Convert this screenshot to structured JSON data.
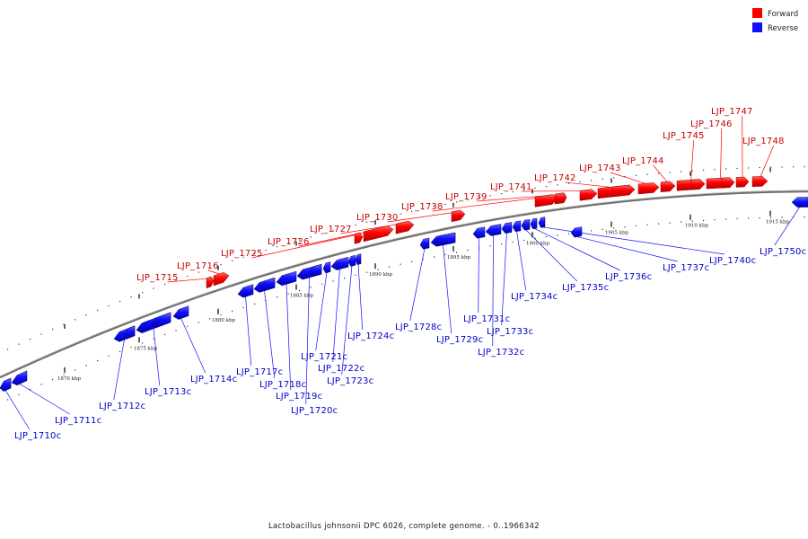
{
  "legend": {
    "forward_label": "Forward",
    "reverse_label": "Reverse",
    "forward_color": "#ff0000",
    "reverse_color": "#1010ff"
  },
  "caption": "Lactobacillus johnsonii DPC 6026, complete genome. - 0..1966342",
  "ticks": [
    {
      "label": "1870 kbp"
    },
    {
      "label": "1875 kbp"
    },
    {
      "label": "1880 kbp"
    },
    {
      "label": "1885 kbp"
    },
    {
      "label": "1890 kbp"
    },
    {
      "label": "1895 kbp"
    },
    {
      "label": "1900 kbp"
    },
    {
      "label": "1905 kbp"
    },
    {
      "label": "1910 kbp"
    },
    {
      "label": "1915 kbp"
    }
  ],
  "genes": {
    "forward": [
      {
        "label": "LJP_1715"
      },
      {
        "label": "LJP_1716"
      },
      {
        "label": "LJP_1725"
      },
      {
        "label": "LJP_1726"
      },
      {
        "label": "LJP_1727"
      },
      {
        "label": "LJP_1730"
      },
      {
        "label": "LJP_1738"
      },
      {
        "label": "LJP_1739"
      },
      {
        "label": "LJP_1741"
      },
      {
        "label": "LJP_1742"
      },
      {
        "label": "LJP_1743"
      },
      {
        "label": "LJP_1744"
      },
      {
        "label": "LJP_1745"
      },
      {
        "label": "LJP_1746"
      },
      {
        "label": "LJP_1747"
      },
      {
        "label": "LJP_1748"
      }
    ],
    "reverse": [
      {
        "label": "LJP_1710c"
      },
      {
        "label": "LJP_1711c"
      },
      {
        "label": "LJP_1712c"
      },
      {
        "label": "LJP_1713c"
      },
      {
        "label": "LJP_1714c"
      },
      {
        "label": "LJP_1717c"
      },
      {
        "label": "LJP_1718c"
      },
      {
        "label": "LJP_1719c"
      },
      {
        "label": "LJP_1720c"
      },
      {
        "label": "LJP_1721c"
      },
      {
        "label": "LJP_1722c"
      },
      {
        "label": "LJP_1723c"
      },
      {
        "label": "LJP_1724c"
      },
      {
        "label": "LJP_1728c"
      },
      {
        "label": "LJP_1729c"
      },
      {
        "label": "LJP_1731c"
      },
      {
        "label": "LJP_1732c"
      },
      {
        "label": "LJP_1733c"
      },
      {
        "label": "LJP_1734c"
      },
      {
        "label": "LJP_1735c"
      },
      {
        "label": "LJP_1736c"
      },
      {
        "label": "LJP_1737c"
      },
      {
        "label": "LJP_1740c"
      },
      {
        "label": "LJP_1750c"
      }
    ]
  }
}
